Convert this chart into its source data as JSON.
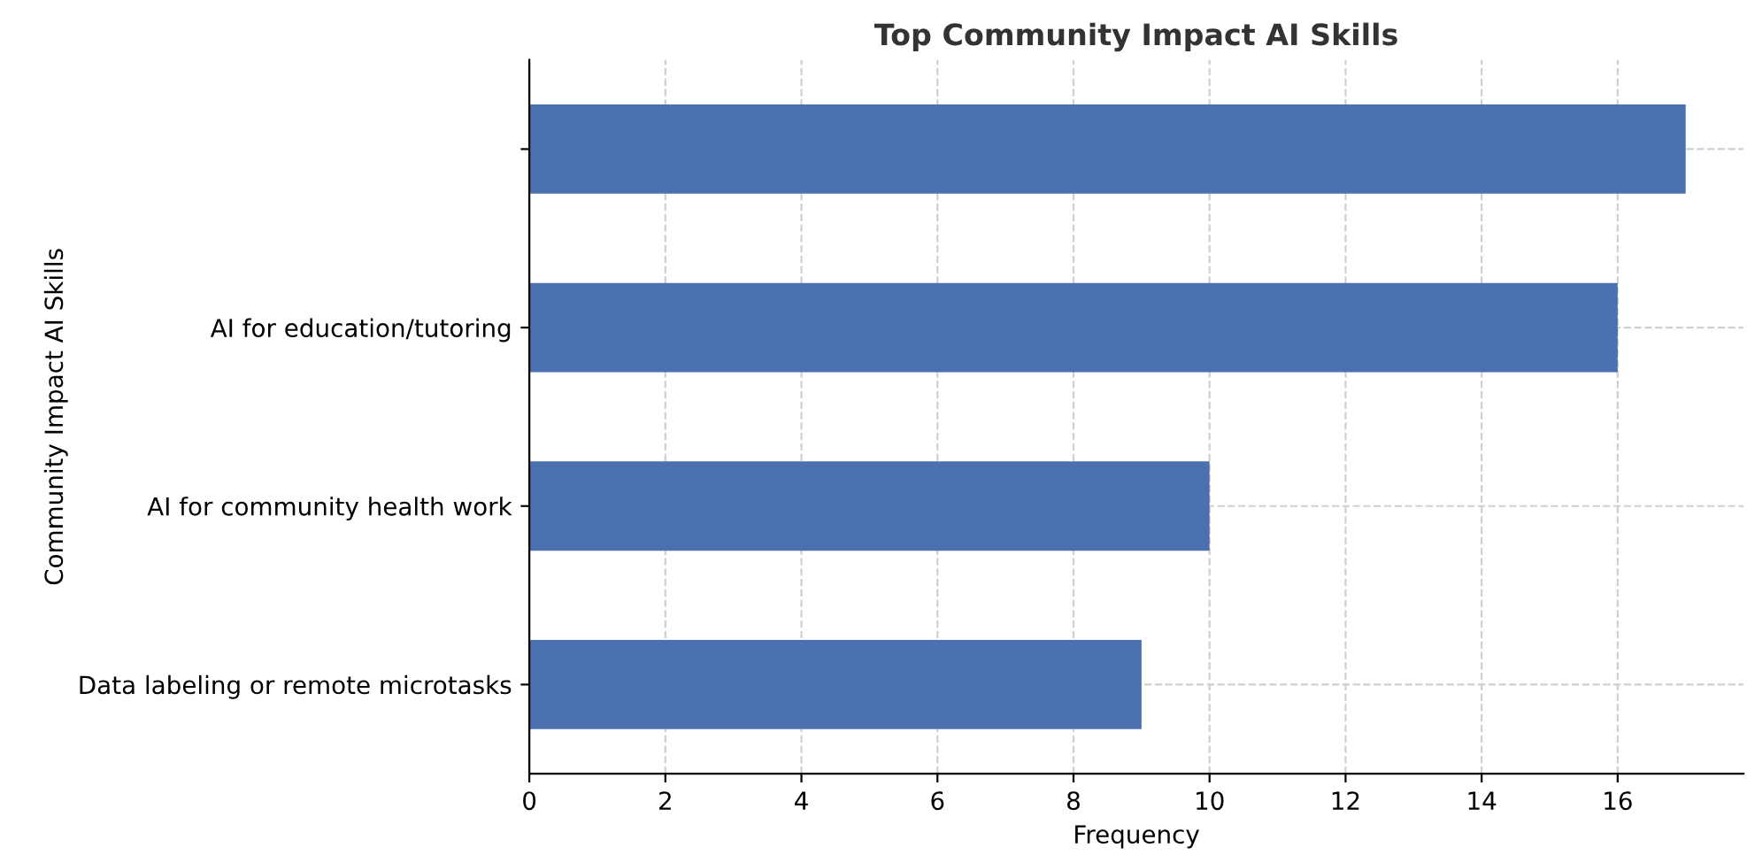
{
  "chart_data": {
    "type": "bar",
    "orientation": "horizontal",
    "title": "Top Community Impact AI Skills",
    "xlabel": "Frequency",
    "ylabel": "Community Impact AI Skills",
    "categories": [
      null,
      "AI for education/tutoring",
      "AI for community health work",
      "Data labeling or remote microtasks"
    ],
    "values": [
      17,
      16,
      10,
      9
    ],
    "color": "#4a70b0",
    "xlim": [
      0,
      17.85
    ],
    "xticks": [
      0,
      2,
      4,
      6,
      8,
      10,
      12,
      14,
      16
    ],
    "grid": true
  }
}
